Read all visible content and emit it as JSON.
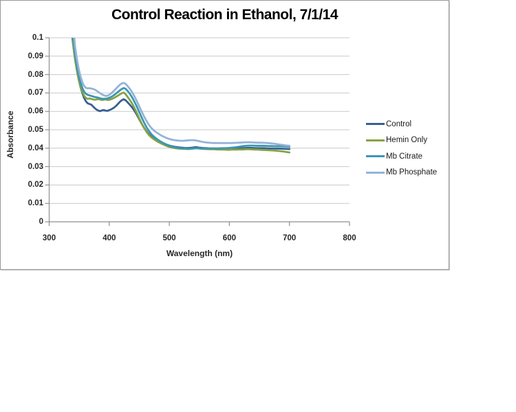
{
  "chart_data": {
    "type": "line",
    "title": "Control Reaction in Ethanol, 7/1/14",
    "xlabel": "Wavelength (nm)",
    "ylabel": "Absorbance",
    "xlim": [
      300,
      800
    ],
    "ylim": [
      0,
      0.1
    ],
    "x_ticks": [
      300,
      400,
      500,
      600,
      700,
      800
    ],
    "y_ticks": [
      0,
      0.01,
      0.02,
      0.03,
      0.04,
      0.05,
      0.06,
      0.07,
      0.08,
      0.09,
      0.1
    ],
    "y_tick_labels": [
      "0",
      "0.01",
      "0.02",
      "0.03",
      "0.04",
      "0.05",
      "0.06",
      "0.07",
      "0.08",
      "0.09",
      "0.1"
    ],
    "grid": "horizontal",
    "grid_color": "#c9c9c9",
    "axis_color": "#8e8e8e",
    "legend_position": "right",
    "x": [
      336,
      338,
      340,
      343,
      346,
      349,
      352,
      355,
      358,
      361,
      364,
      367,
      370,
      373,
      376,
      379,
      382,
      385,
      388,
      391,
      394,
      397,
      400,
      403,
      406,
      409,
      412,
      415,
      418,
      421,
      424,
      427,
      430,
      434,
      438,
      442,
      446,
      450,
      454,
      458,
      462,
      466,
      470,
      475,
      480,
      485,
      490,
      495,
      500,
      505,
      510,
      515,
      520,
      526,
      532,
      538,
      544,
      550,
      556,
      562,
      568,
      574,
      580,
      586,
      592,
      598,
      604,
      610,
      616,
      622,
      628,
      634,
      640,
      646,
      652,
      658,
      664,
      670,
      676,
      682,
      688,
      694,
      700
    ],
    "series": [
      {
        "name": "Control",
        "color": "#376092",
        "values": [
          0.106,
          0.1015,
          0.096,
          0.0885,
          0.0825,
          0.0774,
          0.0734,
          0.0701,
          0.0674,
          0.0655,
          0.0644,
          0.064,
          0.0637,
          0.0627,
          0.0617,
          0.0609,
          0.0604,
          0.0601,
          0.0606,
          0.0607,
          0.0604,
          0.0603,
          0.0607,
          0.0611,
          0.0616,
          0.0623,
          0.0632,
          0.0642,
          0.0653,
          0.0661,
          0.0666,
          0.0661,
          0.0651,
          0.0637,
          0.0622,
          0.0603,
          0.0581,
          0.0557,
          0.0533,
          0.0511,
          0.0492,
          0.0476,
          0.0463,
          0.0451,
          0.0441,
          0.0433,
          0.0426,
          0.042,
          0.0414,
          0.041,
          0.0407,
          0.0405,
          0.0403,
          0.0401,
          0.0401,
          0.0403,
          0.0406,
          0.0403,
          0.0401,
          0.04,
          0.0399,
          0.0399,
          0.0398,
          0.0398,
          0.0397,
          0.0397,
          0.0398,
          0.0399,
          0.04,
          0.04,
          0.0401,
          0.0402,
          0.0401,
          0.04,
          0.04,
          0.04,
          0.0399,
          0.0399,
          0.0398,
          0.0398,
          0.0397,
          0.0396,
          0.0395
        ]
      },
      {
        "name": "Hemin Only",
        "color": "#86A342",
        "values": [
          0.112,
          0.104,
          0.0965,
          0.0885,
          0.0824,
          0.0776,
          0.0737,
          0.0707,
          0.0686,
          0.0673,
          0.0668,
          0.067,
          0.0668,
          0.0665,
          0.0663,
          0.0665,
          0.0667,
          0.0664,
          0.0662,
          0.0663,
          0.0665,
          0.0662,
          0.0663,
          0.0666,
          0.067,
          0.0675,
          0.0681,
          0.0687,
          0.0693,
          0.0699,
          0.0702,
          0.0694,
          0.0681,
          0.0663,
          0.0643,
          0.0618,
          0.059,
          0.0562,
          0.0534,
          0.051,
          0.0489,
          0.0472,
          0.0459,
          0.0447,
          0.0437,
          0.0428,
          0.042,
          0.0413,
          0.0407,
          0.0403,
          0.04,
          0.0398,
          0.0397,
          0.0396,
          0.0395,
          0.0397,
          0.04,
          0.0398,
          0.0396,
          0.0395,
          0.0394,
          0.0394,
          0.0393,
          0.0392,
          0.0392,
          0.0391,
          0.0392,
          0.0392,
          0.0393,
          0.0393,
          0.0394,
          0.0394,
          0.0393,
          0.0392,
          0.0391,
          0.039,
          0.0389,
          0.0388,
          0.0387,
          0.0385,
          0.0383,
          0.038,
          0.0377
        ]
      },
      {
        "name": "Mb Citrate",
        "color": "#3C96B4",
        "values": [
          0.113,
          0.107,
          0.1,
          0.0915,
          0.085,
          0.08,
          0.076,
          0.0729,
          0.0708,
          0.0696,
          0.069,
          0.0687,
          0.0684,
          0.0681,
          0.0678,
          0.0676,
          0.0674,
          0.0671,
          0.0669,
          0.0668,
          0.0669,
          0.0671,
          0.0674,
          0.0678,
          0.0684,
          0.0691,
          0.0699,
          0.0707,
          0.0715,
          0.0722,
          0.0727,
          0.0723,
          0.0713,
          0.0697,
          0.0677,
          0.0652,
          0.0625,
          0.0596,
          0.0567,
          0.0539,
          0.0514,
          0.0494,
          0.0477,
          0.0461,
          0.0448,
          0.0437,
          0.0428,
          0.042,
          0.0413,
          0.0408,
          0.0404,
          0.0401,
          0.0399,
          0.0398,
          0.0397,
          0.0398,
          0.04,
          0.0399,
          0.0398,
          0.0398,
          0.0398,
          0.0399,
          0.0399,
          0.04,
          0.04,
          0.0401,
          0.0403,
          0.0405,
          0.0408,
          0.0411,
          0.0413,
          0.0414,
          0.0414,
          0.0413,
          0.0413,
          0.0413,
          0.0412,
          0.0412,
          0.0411,
          0.0411,
          0.041,
          0.0409,
          0.0408
        ]
      },
      {
        "name": "Mb Phosphate",
        "color": "#95B3D7",
        "values": [
          0.122,
          0.115,
          0.107,
          0.0955,
          0.0885,
          0.0833,
          0.0792,
          0.076,
          0.0739,
          0.0728,
          0.0725,
          0.0726,
          0.0724,
          0.0722,
          0.0718,
          0.0712,
          0.0705,
          0.0698,
          0.0692,
          0.0687,
          0.0684,
          0.0685,
          0.069,
          0.0697,
          0.0706,
          0.0716,
          0.0726,
          0.0736,
          0.0745,
          0.0752,
          0.0755,
          0.075,
          0.074,
          0.0724,
          0.0704,
          0.0681,
          0.0655,
          0.0627,
          0.0599,
          0.0572,
          0.0548,
          0.0527,
          0.051,
          0.0494,
          0.0483,
          0.0472,
          0.0463,
          0.0456,
          0.045,
          0.0446,
          0.0443,
          0.0441,
          0.044,
          0.0441,
          0.0443,
          0.0444,
          0.0442,
          0.0438,
          0.0434,
          0.0431,
          0.0429,
          0.0428,
          0.0428,
          0.0428,
          0.0428,
          0.0428,
          0.0428,
          0.0429,
          0.043,
          0.0431,
          0.0432,
          0.0432,
          0.0431,
          0.043,
          0.043,
          0.0429,
          0.0428,
          0.0426,
          0.0424,
          0.0421,
          0.0418,
          0.0415,
          0.0413
        ]
      }
    ]
  }
}
